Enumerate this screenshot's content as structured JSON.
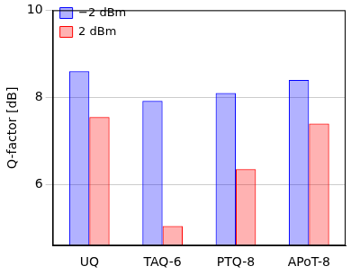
{
  "chart_data": {
    "type": "bar",
    "y_label": "Q-factor [dB]",
    "categories": [
      "UQ",
      "TAQ-6",
      "PTQ-8",
      "APoT-8"
    ],
    "series": [
      {
        "name": "−2 dBm",
        "color": "#0000ff",
        "values": [
          8.6,
          7.92,
          8.1,
          8.4
        ]
      },
      {
        "name": "2 dBm",
        "color": "#ff0000",
        "values": [
          7.55,
          5.05,
          6.35,
          7.4
        ]
      }
    ],
    "ylim": [
      4.6,
      10
    ],
    "yticks": [
      6,
      8,
      10
    ],
    "grid": true,
    "legend": "upper left"
  }
}
